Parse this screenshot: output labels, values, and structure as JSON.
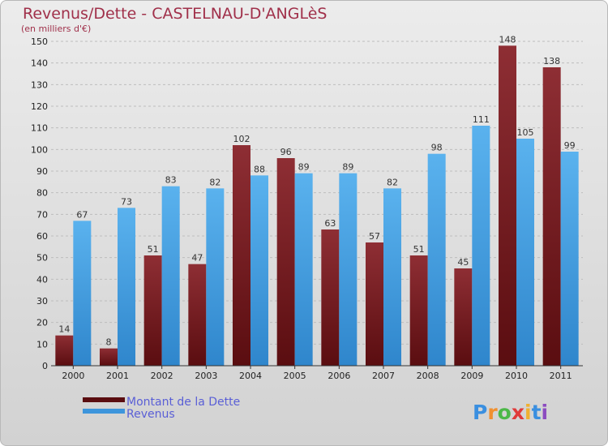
{
  "chart_data": {
    "type": "bar",
    "title": "Revenus/Dette - CASTELNAU-D'ANGLèS",
    "subtitle": "(en milliers d'€)",
    "categories": [
      "2000",
      "2001",
      "2002",
      "2003",
      "2004",
      "2005",
      "2006",
      "2007",
      "2008",
      "2009",
      "2010",
      "2011"
    ],
    "series": [
      {
        "name": "Montant de la Dette",
        "color": "#7a1e22",
        "values": [
          14,
          8,
          51,
          47,
          102,
          96,
          63,
          57,
          51,
          45,
          148,
          138
        ]
      },
      {
        "name": "Revenus",
        "color": "#4aa3e6",
        "values": [
          67,
          73,
          83,
          82,
          88,
          89,
          89,
          82,
          98,
          111,
          105,
          99
        ]
      }
    ],
    "ylim": [
      0,
      150
    ],
    "yticks": [
      0,
      10,
      20,
      30,
      40,
      50,
      60,
      70,
      80,
      90,
      100,
      110,
      120,
      130,
      140,
      150
    ],
    "grid": true,
    "legend": "bottom-left"
  },
  "watermark": {
    "text": "Proxiti"
  }
}
